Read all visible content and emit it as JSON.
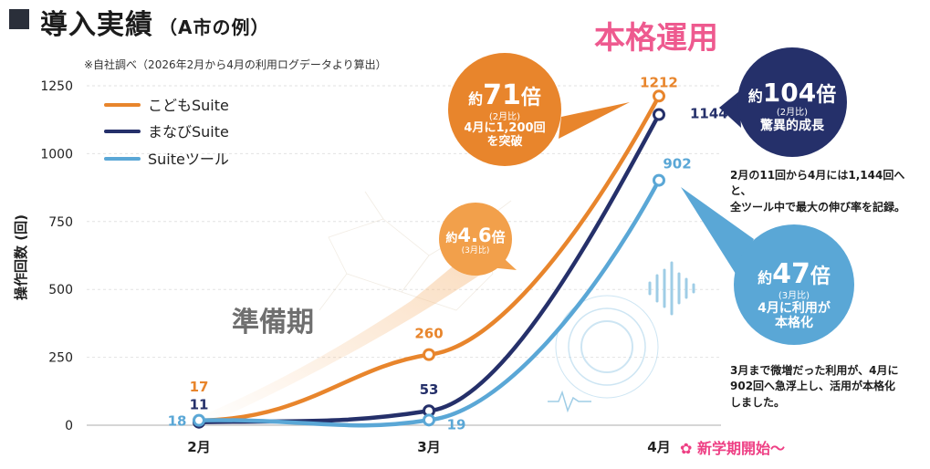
{
  "header": {
    "title": "導入実績",
    "subtitle": "（A市の例）",
    "note": "※自社調べ（2026年2月から4月の利用ログデータより算出）"
  },
  "phases": {
    "main": "本格運用",
    "prep": "準備期",
    "semester": "新学期開始～"
  },
  "chart_data": {
    "type": "line",
    "categories": [
      "2月",
      "3月",
      "4月"
    ],
    "ylabel": "操作回数 (回)",
    "ylim": [
      0,
      1250
    ],
    "yticks": [
      0,
      250,
      500,
      750,
      1000,
      1250
    ],
    "legend_position": "top-left",
    "grid": true,
    "series": [
      {
        "name": "こどもSuite",
        "values": [
          17,
          260,
          1212
        ],
        "labels": [
          "17",
          "260",
          "1212"
        ],
        "color": "#e8852c"
      },
      {
        "name": "まなびSuite",
        "values": [
          11,
          53,
          1144
        ],
        "labels": [
          "11",
          "53",
          "1144"
        ],
        "color": "#25306a"
      },
      {
        "name": "Suiteツール",
        "values": [
          18,
          19,
          902
        ],
        "labels": [
          "18",
          "19",
          "902"
        ],
        "color": "#5aa7d6"
      }
    ]
  },
  "callouts": {
    "kodomo": {
      "prefix": "約",
      "value": "71",
      "suffix": "倍",
      "basis": "(2月比)",
      "line1": "4月に1,200回",
      "line2": "を突破",
      "color": "#e8852c"
    },
    "mar": {
      "prefix": "約",
      "value": "4.6",
      "suffix": "倍",
      "basis": "(3月比)",
      "color": "#f2a04b"
    },
    "manabi": {
      "prefix": "約",
      "value": "104",
      "suffix": "倍",
      "basis": "(2月比)",
      "line1": "驚異的成長",
      "color": "#25306a",
      "note1": "2月の11回から4月には1,144回へと、",
      "note2": "全ツール中で最大の伸び率を記録。"
    },
    "suite": {
      "prefix": "約",
      "value": "47",
      "suffix": "倍",
      "basis": "(3月比)",
      "line1": "4月に利用が",
      "line2": "本格化",
      "color": "#5aa7d6",
      "note1": "3月まで微増だった利用が、4月に",
      "note2": "902回へ急浮上し、活用が本格化",
      "note3": "しました。"
    }
  }
}
